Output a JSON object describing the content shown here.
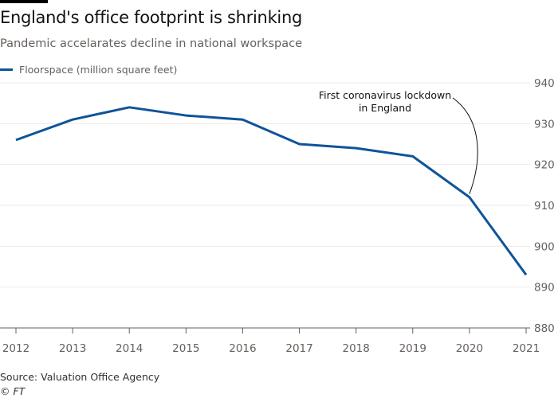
{
  "chart_data": {
    "type": "line",
    "title": "England's office footprint is shrinking",
    "subtitle": "Pandemic accelarates decline in national workspace",
    "x": [
      "2012",
      "2013",
      "2014",
      "2015",
      "2016",
      "2017",
      "2018",
      "2019",
      "2020",
      "2021"
    ],
    "series": [
      {
        "name": "Floorspace (million square feet)",
        "color": "#0f5499",
        "values": [
          926,
          931,
          934,
          932,
          931,
          925,
          924,
          922,
          912,
          893
        ]
      }
    ],
    "ylim": [
      880,
      940
    ],
    "yticks": [
      940,
      930,
      920,
      910,
      900,
      890,
      880
    ],
    "y_axis_side": "right",
    "grid": true,
    "legend": "top-left",
    "annotation": {
      "lines": [
        "First coronavirus lockdown",
        "in England"
      ],
      "target_x": "2020"
    },
    "source": "Source: Valuation Office Agency",
    "credit": "© FT"
  }
}
